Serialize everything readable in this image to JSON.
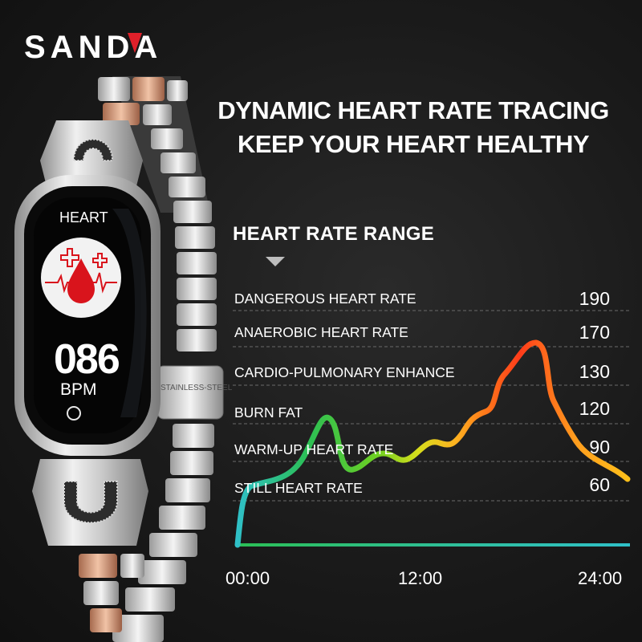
{
  "brand": {
    "logo": "SANDA"
  },
  "headline": {
    "line1": "DYNAMIC HEART RATE TRACING",
    "line2": "KEEP YOUR HEART HEALTHY"
  },
  "watch": {
    "screen_title": "HEART",
    "bpm_value": "086",
    "bpm_unit": "BPM",
    "clasp_text": "STAINLESS-STEEL"
  },
  "range": {
    "title": "HEART RATE RANGE",
    "zones": [
      {
        "label": "DANGEROUS HEART RATE",
        "value": "190"
      },
      {
        "label": "ANAEROBIC HEART RATE",
        "value": "170"
      },
      {
        "label": "CARDIO-PULMONARY ENHANCE",
        "value": "130"
      },
      {
        "label": "BURN FAT",
        "value": "120"
      },
      {
        "label": "WARM-UP HEART RATE",
        "value": "90"
      },
      {
        "label": "STILL HEART RATE",
        "value": "60"
      }
    ]
  },
  "chart_data": {
    "type": "line",
    "x_ticks": [
      "00:00",
      "12:00",
      "24:00"
    ],
    "xlabel": "",
    "ylabel": "",
    "series": [
      {
        "x": [
          "00:00",
          "00:45",
          "01:45",
          "03:00",
          "04:15",
          "05:00",
          "06:30",
          "07:30",
          "09:00",
          "10:00",
          "11:15",
          "12:00",
          "13:00",
          "14:00",
          "15:00",
          "16:30",
          "17:30",
          "18:45",
          "20:00",
          "21:30",
          "22:30",
          "24:00"
        ],
        "y": [
          0,
          50,
          58,
          65,
          80,
          105,
          118,
          90,
          85,
          88,
          86,
          95,
          100,
          115,
          125,
          138,
          185,
          165,
          125,
          100,
          82,
          70
        ]
      }
    ],
    "colors": [
      "#2fc0c8",
      "#2bbf55",
      "#6fd021",
      "#d7de1c",
      "#ffb020",
      "#ff7a1a",
      "#ff3b1a",
      "#ff9d1e",
      "#ffc11a"
    ],
    "grid": true
  }
}
